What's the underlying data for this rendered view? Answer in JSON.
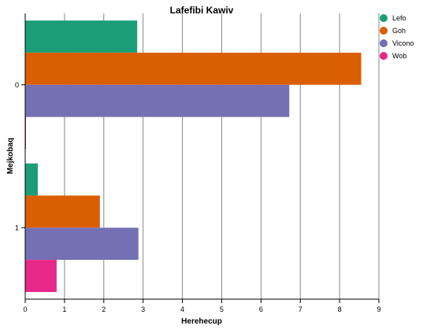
{
  "chart_data": {
    "type": "bar",
    "orientation": "horizontal",
    "title": "Lafefibi Kawiv",
    "xlabel": "Herehecup",
    "ylabel": "Mejkobaq",
    "categories": [
      "0",
      "1"
    ],
    "xlim": [
      0,
      9
    ],
    "xticks": [
      "0",
      "1",
      "2",
      "3",
      "4",
      "5",
      "6",
      "7",
      "8",
      "9"
    ],
    "grid": "vertical",
    "legend_position": "top-right",
    "series": [
      {
        "name": "Lefo",
        "color": "#1b9e77",
        "values": [
          2.85,
          0.32
        ]
      },
      {
        "name": "Goh",
        "color": "#d95f02",
        "values": [
          8.55,
          1.9
        ]
      },
      {
        "name": "Vicono",
        "color": "#7570b3",
        "values": [
          6.72,
          2.88
        ]
      },
      {
        "name": "Wob",
        "color": "#e7298a",
        "values": [
          0.02,
          0.8
        ]
      }
    ]
  }
}
